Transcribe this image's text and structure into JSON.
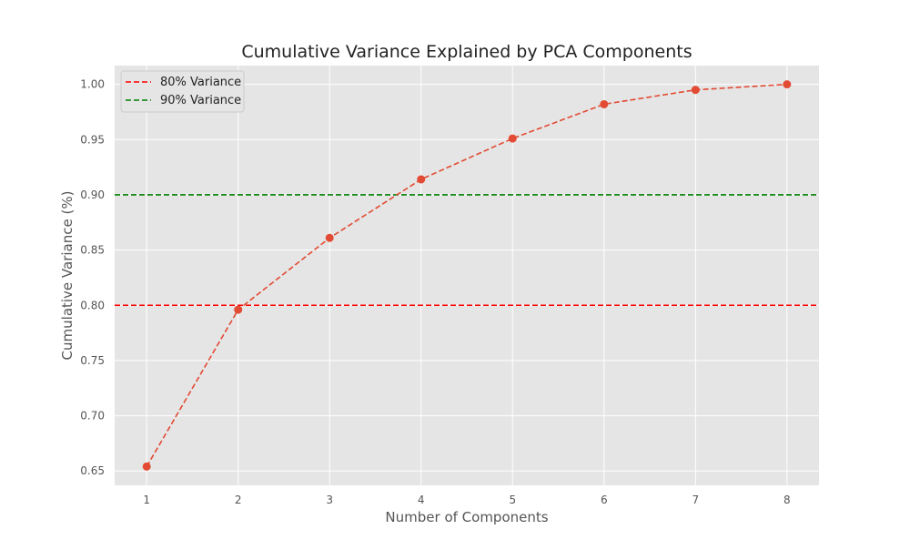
{
  "chart_data": {
    "type": "line",
    "title": "Cumulative Variance Explained by PCA Components",
    "xlabel": "Number of Components",
    "ylabel": "Cumulative Variance (%)",
    "x": [
      1,
      2,
      3,
      4,
      5,
      6,
      7,
      8
    ],
    "xlim": [
      0.65,
      8.35
    ],
    "ylim": [
      0.637,
      1.017
    ],
    "xticks": [
      1,
      2,
      3,
      4,
      5,
      6,
      7,
      8
    ],
    "xtick_labels": [
      "1",
      "2",
      "3",
      "4",
      "5",
      "6",
      "7",
      "8"
    ],
    "yticks": [
      0.65,
      0.7,
      0.75,
      0.8,
      0.85,
      0.9,
      0.95,
      1.0
    ],
    "ytick_labels": [
      "0.65",
      "0.70",
      "0.75",
      "0.80",
      "0.85",
      "0.90",
      "0.95",
      "1.00"
    ],
    "grid": true,
    "series": [
      {
        "values": [
          0.654,
          0.796,
          0.861,
          0.914,
          0.951,
          0.982,
          0.995,
          1.0
        ],
        "color": "#E24A33",
        "line_style": "dashed",
        "marker": "circle"
      }
    ],
    "reference_lines": [
      {
        "name": "80% Variance",
        "y": 0.8,
        "color": "#ff0000",
        "line_style": "dashed"
      },
      {
        "name": "90% Variance",
        "y": 0.9,
        "color": "#008000",
        "line_style": "dashed"
      }
    ],
    "legend": {
      "placement": "top-left",
      "entries": [
        "80% Variance",
        "90% Variance"
      ]
    },
    "colors": {
      "plot_background": "#E5E5E5",
      "grid": "#ffffff",
      "tick_text": "#555555",
      "title_text": "#222222"
    }
  }
}
